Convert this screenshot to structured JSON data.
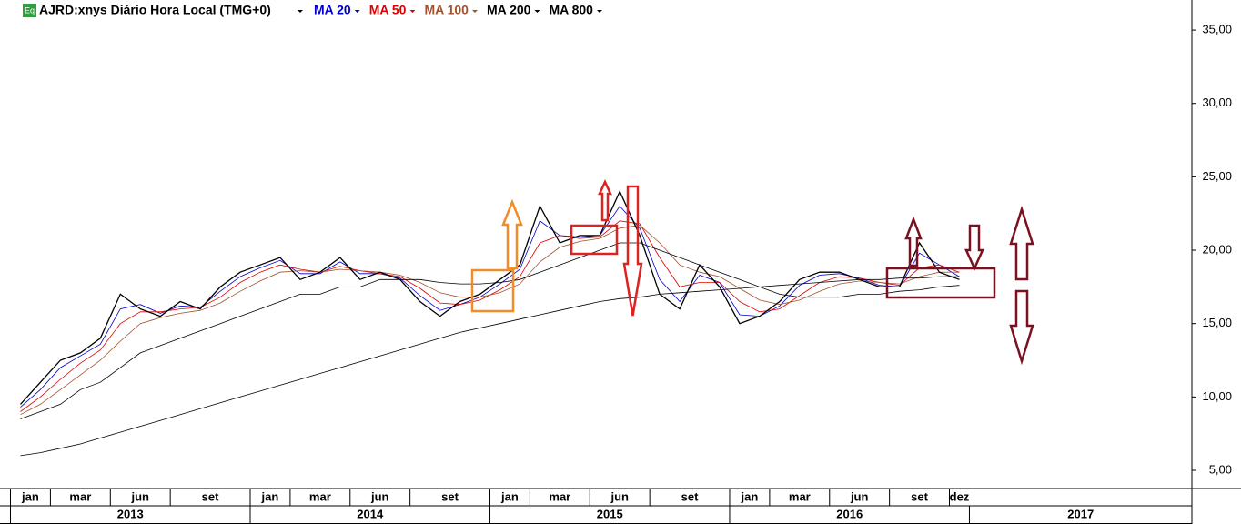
{
  "chart_data": {
    "type": "line",
    "title": "AJRD:xnys Diário Hora Local (TMG+0)",
    "icon": "Eq",
    "x": [
      "2013-01",
      "2013-02",
      "2013-03",
      "2013-04",
      "2013-05",
      "2013-06",
      "2013-07",
      "2013-08",
      "2013-09",
      "2013-10",
      "2013-11",
      "2013-12",
      "2014-01",
      "2014-02",
      "2014-03",
      "2014-04",
      "2014-05",
      "2014-06",
      "2014-07",
      "2014-08",
      "2014-09",
      "2014-10",
      "2014-11",
      "2014-12",
      "2015-01",
      "2015-02",
      "2015-03",
      "2015-04",
      "2015-05",
      "2015-06",
      "2015-07",
      "2015-08",
      "2015-09",
      "2015-10",
      "2015-11",
      "2015-12",
      "2016-01",
      "2016-02",
      "2016-03",
      "2016-04",
      "2016-05",
      "2016-06",
      "2016-07",
      "2016-08",
      "2016-09",
      "2016-10",
      "2016-11",
      "2016-12"
    ],
    "price": {
      "color": "#000000",
      "values": [
        9.5,
        11,
        12.5,
        13,
        14,
        17,
        16,
        15.5,
        16.5,
        16,
        17.5,
        18.5,
        19,
        19.5,
        18,
        18.5,
        19.5,
        18,
        18.5,
        18,
        16.5,
        15.5,
        16.5,
        17,
        18,
        19,
        23,
        20.5,
        21,
        21,
        24,
        21,
        17,
        16,
        19,
        17.5,
        15,
        15.5,
        16.5,
        18,
        18.5,
        18.5,
        18,
        17.5,
        17.5,
        20.5,
        18.5,
        18
      ]
    },
    "series": [
      {
        "name": "MA 20",
        "color": "#0000cc",
        "values": [
          9.3,
          10.5,
          12,
          12.8,
          13.6,
          16,
          16.3,
          15.7,
          16.2,
          16.1,
          17.2,
          18.2,
          18.8,
          19.3,
          18.4,
          18.4,
          19.2,
          18.4,
          18.4,
          18.1,
          16.9,
          15.9,
          16.3,
          16.8,
          17.7,
          18.7,
          22,
          21,
          20.9,
          21,
          23,
          21.5,
          18,
          16.5,
          18.3,
          17.8,
          15.6,
          15.5,
          16.2,
          17.6,
          18.3,
          18.4,
          18.1,
          17.6,
          17.5,
          19.8,
          19,
          18.2
        ]
      },
      {
        "name": "MA 50",
        "color": "#dd0000",
        "values": [
          9,
          10,
          11.2,
          12.3,
          13.2,
          15,
          15.8,
          15.8,
          16,
          16.1,
          16.8,
          17.8,
          18.5,
          19,
          18.7,
          18.5,
          18.9,
          18.6,
          18.4,
          18.2,
          17.4,
          16.4,
          16.3,
          16.6,
          17.3,
          18.2,
          20.5,
          21,
          20.8,
          20.9,
          22,
          21.8,
          19.5,
          17.5,
          17.8,
          17.8,
          16.5,
          15.8,
          16,
          16.9,
          17.8,
          18.2,
          18.1,
          17.8,
          17.6,
          18.8,
          19,
          18.5
        ]
      },
      {
        "name": "MA 100",
        "color": "#a0522d",
        "values": [
          8.8,
          9.5,
          10.5,
          11.5,
          12.5,
          13.8,
          15,
          15.4,
          15.7,
          15.9,
          16.4,
          17.2,
          17.9,
          18.5,
          18.6,
          18.5,
          18.7,
          18.6,
          18.5,
          18.3,
          17.8,
          17.1,
          16.8,
          16.8,
          17.1,
          17.7,
          19.2,
          20.2,
          20.6,
          20.8,
          21.5,
          21.7,
          20.5,
          19,
          18.5,
          18.2,
          17.4,
          16.6,
          16.3,
          16.6,
          17.2,
          17.7,
          17.9,
          17.8,
          17.7,
          18.2,
          18.5,
          18.5
        ]
      },
      {
        "name": "MA 200",
        "color": "#000000",
        "values": [
          8.5,
          9,
          9.5,
          10.5,
          11,
          12,
          13,
          13.5,
          14,
          14.5,
          15,
          15.5,
          16,
          16.5,
          17,
          17,
          17.5,
          17.5,
          18,
          18,
          18,
          17.8,
          17.7,
          17.7,
          17.8,
          18,
          18.5,
          19,
          19.5,
          20,
          20.5,
          20.5,
          20,
          19.5,
          19,
          18.5,
          18,
          17.5,
          17,
          16.8,
          16.8,
          16.8,
          17,
          17,
          17.2,
          17.3,
          17.5,
          17.6
        ]
      },
      {
        "name": "MA 800",
        "color": "#000000",
        "values": [
          6,
          6.2,
          6.5,
          6.8,
          7.2,
          7.6,
          8,
          8.4,
          8.8,
          9.2,
          9.6,
          10,
          10.4,
          10.8,
          11.2,
          11.6,
          12,
          12.4,
          12.8,
          13.2,
          13.6,
          14,
          14.4,
          14.7,
          15,
          15.3,
          15.6,
          15.9,
          16.2,
          16.5,
          16.7,
          16.8,
          17,
          17.1,
          17.2,
          17.3,
          17.4,
          17.5,
          17.6,
          17.7,
          17.8,
          17.9,
          18,
          18,
          18.1,
          18.1,
          18.2,
          18.2
        ]
      }
    ],
    "xlim": [
      "2013-01",
      "2017-12"
    ],
    "xticks": [
      {
        "value": "2013-01",
        "label": "jan"
      },
      {
        "value": "2013-03",
        "label": "mar"
      },
      {
        "value": "2013-06",
        "label": "jun"
      },
      {
        "value": "2013-09",
        "label": "set"
      },
      {
        "value": "2014-01",
        "label": "jan"
      },
      {
        "value": "2014-03",
        "label": "mar"
      },
      {
        "value": "2014-06",
        "label": "jun"
      },
      {
        "value": "2014-09",
        "label": "set"
      },
      {
        "value": "2015-01",
        "label": "jan"
      },
      {
        "value": "2015-03",
        "label": "mar"
      },
      {
        "value": "2015-06",
        "label": "jun"
      },
      {
        "value": "2015-09",
        "label": "set"
      },
      {
        "value": "2016-01",
        "label": "jan"
      },
      {
        "value": "2016-03",
        "label": "mar"
      },
      {
        "value": "2016-06",
        "label": "jun"
      },
      {
        "value": "2016-09",
        "label": "set"
      },
      {
        "value": "2016-12",
        "label": "dez"
      }
    ],
    "years": [
      "2013",
      "2014",
      "2015",
      "2016",
      "2017"
    ],
    "ylim": [
      3.76,
      37.05
    ],
    "yticks": [
      {
        "value": 5,
        "label": "5,00"
      },
      {
        "value": 10,
        "label": "10,00"
      },
      {
        "value": 15,
        "label": "15,00"
      },
      {
        "value": 20,
        "label": "20,00"
      },
      {
        "value": 25,
        "label": "25,00"
      },
      {
        "value": 30,
        "label": "30,00"
      },
      {
        "value": 35,
        "label": "35,00"
      }
    ],
    "axis_side": "right"
  }
}
